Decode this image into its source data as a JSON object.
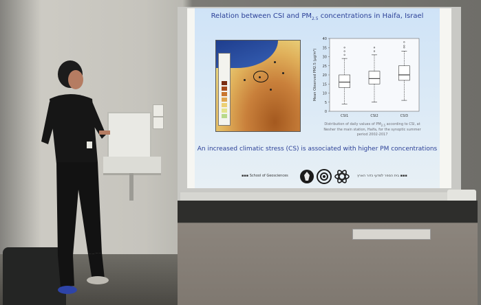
{
  "slide": {
    "title_main": "Relation between CSI and PM",
    "title_sub": "2.5",
    "title_tail": " concentrations in Haifa, Israel",
    "conclusion": "An increased climatic stress (CS) is associated with higher PM concentrations",
    "caption_line1": "Distribution of daily values of PM",
    "caption_sub": "2.5",
    "caption_line2": " according to CSI, at Nesher the main station, Haifa, for the synoptic summer period 2002-2017",
    "footer_left": "▪▪▪ School of Geosciences",
    "footer_right": "בית הספר למדעי כדור הארץ ▪▪▪",
    "colors": {
      "title": "#2a3f97",
      "conclusion": "#2a3f97",
      "background": "#dceaf6"
    }
  },
  "chart_data": {
    "type": "box",
    "categories": [
      "CSI1",
      "CSI2",
      "CSI3"
    ],
    "ylabel": "Mean Observed PM2.5 (μg/m³)",
    "ylim": [
      0,
      40
    ],
    "yticks": [
      0,
      5,
      10,
      15,
      20,
      25,
      30,
      35,
      40
    ],
    "boxes": [
      {
        "name": "CSI1",
        "whisker_low": 4,
        "q1": 13,
        "median": 16,
        "q3": 20,
        "whisker_high": 29,
        "outliers": [
          31,
          33,
          35
        ]
      },
      {
        "name": "CSI2",
        "whisker_low": 5,
        "q1": 15,
        "median": 18,
        "q3": 22,
        "whisker_high": 31,
        "outliers": [
          33,
          35
        ]
      },
      {
        "name": "CSI3",
        "whisker_low": 6,
        "q1": 17,
        "median": 20,
        "q3": 25,
        "whisker_high": 33,
        "outliers": [
          35,
          36,
          38
        ]
      }
    ],
    "grid": false
  },
  "map_legend_colors": [
    "#7a2c10",
    "#a5491a",
    "#c9762f",
    "#e0a64f",
    "#ecd074",
    "#e3e38c",
    "#b8d98a"
  ]
}
